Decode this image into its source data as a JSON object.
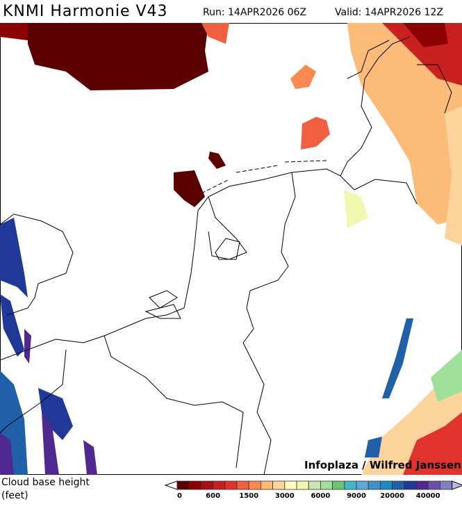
{
  "header": {
    "title": "KNMI Harmonie V43",
    "run": "Run: 14APR2026 06Z",
    "valid": "Valid: 14APR2026 12Z"
  },
  "map": {
    "credit": "Infoplaza / Wilfred Janssen",
    "region": "Netherlands and surroundings"
  },
  "legend": {
    "label_line1": "Cloud base height",
    "label_line2": "(feet)",
    "colors": [
      "#5a0000",
      "#8b0000",
      "#a50f15",
      "#c8201e",
      "#e0332b",
      "#f06040",
      "#fc8a50",
      "#fdbb7a",
      "#fdd59c",
      "#ffffc0",
      "#f0f8b0",
      "#c8e6b0",
      "#a0e09a",
      "#6cc470",
      "#40b8c8",
      "#60a8d8",
      "#4090cc",
      "#2088c0",
      "#2060a8",
      "#203898",
      "#502890",
      "#6a50a8",
      "#8080c0"
    ],
    "under_color": "#ffffff",
    "over_color": "#b8b8e0",
    "ticks": [
      {
        "index": 0,
        "label": "0"
      },
      {
        "index": 3,
        "label": "600"
      },
      {
        "index": 6,
        "label": "1500"
      },
      {
        "index": 9,
        "label": "3000"
      },
      {
        "index": 12,
        "label": "6000"
      },
      {
        "index": 15,
        "label": "9000"
      },
      {
        "index": 18,
        "label": "20000"
      },
      {
        "index": 21,
        "label": "40000"
      }
    ]
  }
}
